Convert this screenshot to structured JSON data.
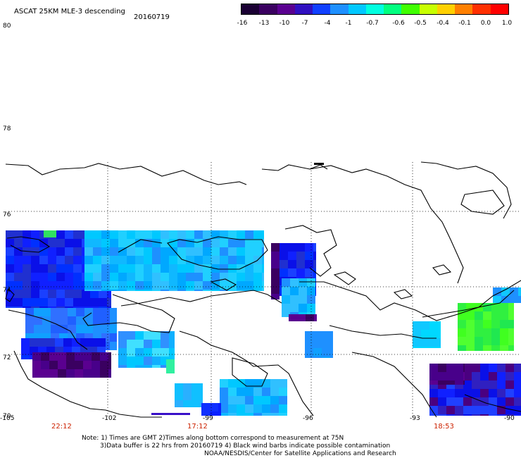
{
  "header": {
    "title": "ASCAT 25KM MLE-3 descending",
    "date": "20160719"
  },
  "colorbar": {
    "tick_labels": [
      "-16",
      "-13",
      "-10",
      "-7",
      "-4",
      "-1",
      "-0.7",
      "-0.6",
      "-0.5",
      "-0.4",
      "-0.1",
      "0.0",
      "1.0"
    ],
    "colors": [
      "#1a0033",
      "#3a0060",
      "#5a0090",
      "#3010c0",
      "#1040ff",
      "#1e90ff",
      "#00c8ff",
      "#00ffe0",
      "#00ff80",
      "#40ff00",
      "#c8ff00",
      "#ffd000",
      "#ff8000",
      "#ff3000",
      "#ff0000"
    ]
  },
  "map": {
    "lat_labels": [
      "80",
      "78",
      "76",
      "74",
      "72",
      "70"
    ],
    "lon_labels": [
      "-105",
      "-102",
      "-99",
      "-96",
      "-93",
      "-90"
    ],
    "time_labels": [
      "22:12",
      "17:12",
      "18:53"
    ],
    "time_color": "#cc2200",
    "grid_style": "dotted",
    "ocean_color": "#ffffff"
  },
  "footer": {
    "note_line1": "Note: 1) Times are GMT 2)Times along bottom correspond to measurement at 75N",
    "note_line2": "3)Data buffer is 22 hrs from 20160719 4) Black wind barbs indicate possible contamination",
    "credit": "NOAA/NESDIS/Center for Satellite Applications and Research"
  }
}
